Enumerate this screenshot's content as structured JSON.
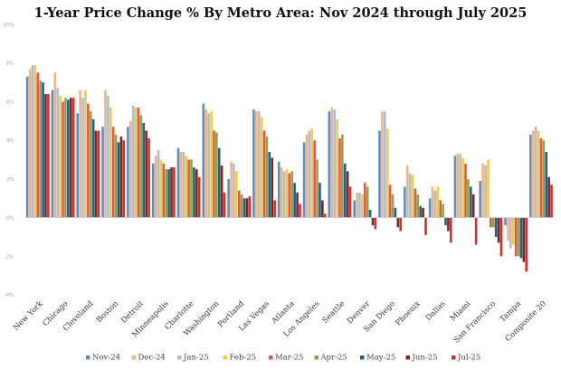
{
  "chart_data": {
    "type": "bar",
    "title": "1-Year Price Change % By Metro Area: Nov 2024 through July 2025",
    "xlabel": "",
    "ylabel": "",
    "ylim": [
      -4,
      10
    ],
    "yticks": [
      "10%",
      "8%",
      "6%",
      "4%",
      "2%",
      "0%",
      "-2%",
      "-4%"
    ],
    "ytick_values": [
      10,
      8,
      6,
      4,
      2,
      0,
      -2,
      -4
    ],
    "grid": false,
    "legend": "bottom",
    "categories": [
      "New York",
      "Chicago",
      "Cleveland",
      "Boston",
      "Detroit",
      "Minneapolis",
      "Charlotte",
      "Washington",
      "Portland",
      "Las Vegas",
      "Atlanta",
      "Los Angeles",
      "Seattle",
      "Denver",
      "San Diego",
      "Phoenix",
      "Dallas",
      "Miami",
      "San Francisco",
      "Tampa",
      "Composite 20"
    ],
    "series": [
      {
        "name": "Nov-24",
        "color": "#5b8fbe",
        "values": [
          7.3,
          6.6,
          5.4,
          4.7,
          4.7,
          2.8,
          3.6,
          5.9,
          2.0,
          5.6,
          2.9,
          3.9,
          5.5,
          0.9,
          4.5,
          1.6,
          1.0,
          3.2,
          1.9,
          -0.4,
          4.3
        ]
      },
      {
        "name": "Dec-24",
        "color": "#f2b383",
        "values": [
          7.7,
          7.5,
          6.6,
          6.6,
          5.0,
          3.2,
          3.4,
          5.6,
          2.9,
          5.5,
          2.6,
          4.3,
          5.7,
          1.3,
          5.5,
          2.7,
          1.6,
          3.3,
          2.8,
          -1.2,
          4.5
        ]
      },
      {
        "name": "Jan-25",
        "color": "#a8bfd6",
        "values": [
          7.9,
          6.7,
          6.2,
          6.3,
          5.8,
          3.5,
          3.4,
          5.4,
          2.8,
          5.5,
          2.4,
          4.5,
          5.6,
          1.3,
          5.5,
          2.3,
          1.4,
          3.3,
          2.7,
          -1.6,
          4.7
        ]
      },
      {
        "name": "Feb-25",
        "color": "#f5c945",
        "values": [
          7.9,
          6.3,
          6.6,
          5.7,
          5.7,
          3.0,
          3.2,
          5.5,
          2.4,
          5.2,
          2.5,
          4.6,
          5.1,
          1.2,
          4.6,
          2.2,
          1.6,
          3.1,
          3.0,
          -1.4,
          4.5
        ]
      },
      {
        "name": "Mar-25",
        "color": "#e0584d",
        "values": [
          7.5,
          6.0,
          5.9,
          4.7,
          5.7,
          2.8,
          3.0,
          4.5,
          1.4,
          4.5,
          2.3,
          4.0,
          4.1,
          1.8,
          1.7,
          1.5,
          0.9,
          2.8,
          -0.5,
          -2.0,
          4.1
        ]
      },
      {
        "name": "Apr-25",
        "color": "#7dab4a",
        "values": [
          7.1,
          6.2,
          5.5,
          4.3,
          5.3,
          2.5,
          3.0,
          4.4,
          1.2,
          4.2,
          2.4,
          3.0,
          4.3,
          1.6,
          1.2,
          1.2,
          0.7,
          2.0,
          -0.5,
          -2.0,
          4.0
        ]
      },
      {
        "name": "May-25",
        "color": "#2e5b86",
        "values": [
          7.0,
          6.1,
          5.1,
          3.9,
          4.9,
          2.5,
          2.6,
          3.6,
          1.0,
          3.4,
          1.8,
          1.8,
          2.8,
          0.4,
          0.5,
          0.6,
          -0.4,
          1.6,
          -1.0,
          -2.1,
          3.4
        ]
      },
      {
        "name": "Jun-25",
        "color": "#7a2a20",
        "values": [
          6.4,
          6.2,
          4.5,
          4.2,
          4.5,
          2.6,
          2.5,
          2.7,
          1.0,
          3.1,
          1.3,
          0.9,
          2.4,
          -0.4,
          -0.5,
          0.5,
          -0.7,
          1.2,
          -1.3,
          -2.3,
          2.1
        ]
      },
      {
        "name": "Jul-25",
        "color": "#d32f2f",
        "values": [
          6.4,
          6.2,
          4.5,
          4.0,
          4.1,
          2.6,
          2.1,
          1.3,
          1.1,
          0.9,
          0.7,
          0.2,
          1.6,
          -0.6,
          -0.7,
          -0.9,
          -1.3,
          -1.4,
          -2.0,
          -2.8,
          1.7
        ]
      }
    ]
  }
}
